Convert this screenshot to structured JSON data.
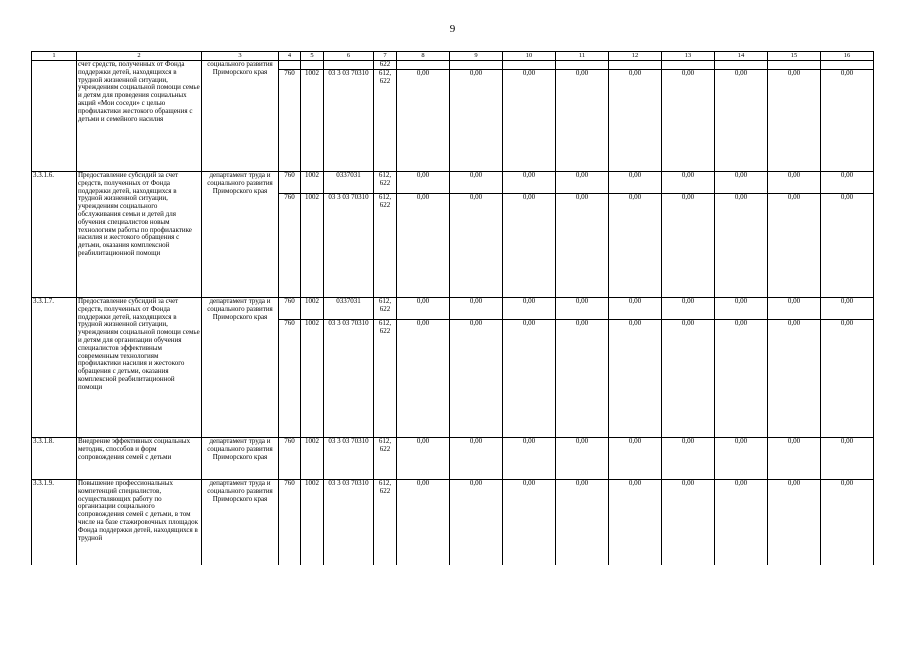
{
  "page": {
    "number": "9"
  },
  "table": {
    "header": [
      "1",
      "2",
      "3",
      "4",
      "5",
      "6",
      "7",
      "8",
      "9",
      "10",
      "11",
      "12",
      "13",
      "14",
      "15",
      "16"
    ],
    "rows": [
      {
        "num": "",
        "name": "счет средств, полученных от Фонда поддержки детей, находящихся в трудной жизненной ситуации, учреждениям социальной помощи семье и детям для проведения социальных акций «Мои соседи» с целью профилактики жестокого обращения с детьми и семейного насилия",
        "dept": "социального развития Приморского края",
        "subrows": [
          {
            "grbs": "",
            "rz": "",
            "csr": "",
            "vr": "622",
            "values": [
              "",
              "",
              "",
              "",
              "",
              "",
              "",
              "",
              ""
            ]
          },
          {
            "grbs": "760",
            "rz": "1002",
            "csr": "03 3 03 70310",
            "vr": "612, 622",
            "values": [
              "0,00",
              "0,00",
              "0,00",
              "0,00",
              "0,00",
              "0,00",
              "0,00",
              "0,00",
              "0,00"
            ]
          }
        ]
      },
      {
        "num": "3.3.1.6.",
        "name": "Предоставление субсидий за счет средств, полученных от Фонда поддержки детей, находящихся в трудной жизненной ситуации, учреждениям социального обслуживания семьи и детей для обучения специалистов новым технологиям работы по профилактике насилия и жестокого обращения с детьми, оказания комплексной реабилитационной помощи",
        "dept": "департамент труда и социального развития Приморского края",
        "subrows": [
          {
            "grbs": "760",
            "rz": "1002",
            "csr": "0337031",
            "vr": "612, 622",
            "values": [
              "0,00",
              "0,00",
              "0,00",
              "0,00",
              "0,00",
              "0,00",
              "0,00",
              "0,00",
              "0,00"
            ]
          },
          {
            "grbs": "760",
            "rz": "1002",
            "csr": "03 3 03 70310",
            "vr": "612, 622",
            "values": [
              "0,00",
              "0,00",
              "0,00",
              "0,00",
              "0,00",
              "0,00",
              "0,00",
              "0,00",
              "0,00"
            ]
          }
        ]
      },
      {
        "num": "3.3.1.7.",
        "name": "Предоставление субсидий за счет средств, полученных от Фонда поддержки детей, находящихся в трудной жизненной ситуации, учреждениям социальной помощи семье и детям для организации обучения специалистов эффективным современным технологиям профилактики насилия и жестокого обращения  с детьми, оказания комплексной реабилитационной  помощи",
        "dept": "департамент труда и социального развития Приморского края",
        "subrows": [
          {
            "grbs": "760",
            "rz": "1002",
            "csr": "0337031",
            "vr": "612, 622",
            "values": [
              "0,00",
              "0,00",
              "0,00",
              "0,00",
              "0,00",
              "0,00",
              "0,00",
              "0,00",
              "0,00"
            ]
          },
          {
            "grbs": "760",
            "rz": "1002",
            "csr": "03 3 03 70310",
            "vr": "612, 622",
            "values": [
              "0,00",
              "0,00",
              "0,00",
              "0,00",
              "0,00",
              "0,00",
              "0,00",
              "0,00",
              "0,00"
            ]
          }
        ]
      },
      {
        "num": "3.3.1.8.",
        "name": "Внедрение эффективных социальных методик, способов и форм сопровождения семей с детьми",
        "dept": "департамент труда и социального развития Приморского края",
        "subrows": [
          {
            "grbs": "760",
            "rz": "1002",
            "csr": "03 3 03 70310",
            "vr": "612, 622",
            "values": [
              "0,00",
              "0,00",
              "0,00",
              "0,00",
              "0,00",
              "0,00",
              "0,00",
              "0,00",
              "0,00"
            ]
          }
        ]
      },
      {
        "num": "3.3.1.9.",
        "name": "Повышение профессиональных компетенций специалистов, осуществляющих работу по организации социального сопровождения семей с детьми, в том числе на базе стажировочных площадок Фонда поддержки детей, находящихся в трудной",
        "dept": "департамент труда и социального развития Приморского края",
        "subrows": [
          {
            "grbs": "760",
            "rz": "1002",
            "csr": "03 3 03 70310",
            "vr": "612, 622",
            "values": [
              "0,00",
              "0,00",
              "0,00",
              "0,00",
              "0,00",
              "0,00",
              "0,00",
              "0,00",
              "0,00"
            ]
          }
        ]
      }
    ]
  }
}
